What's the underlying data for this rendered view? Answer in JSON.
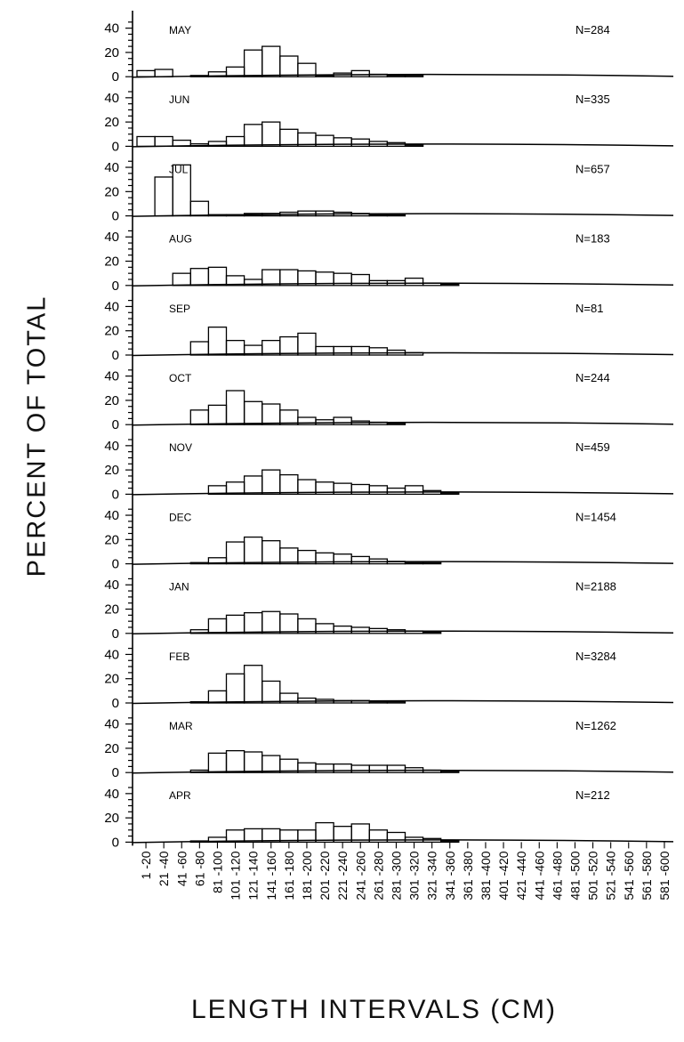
{
  "chart_data": {
    "type": "bar",
    "ylabel": "PERCENT OF TOTAL",
    "xlabel": "LENGTH INTERVALS (CM)",
    "ylim": [
      0,
      50
    ],
    "yticks": [
      "0",
      "20",
      "40"
    ],
    "categories": [
      "1 -20",
      "21 -40",
      "41 -60",
      "61 -80",
      "81 -100",
      "101 -120",
      "121 -140",
      "141 -160",
      "161 -180",
      "181 -200",
      "201 -220",
      "221 -240",
      "241 -260",
      "261 -280",
      "281 -300",
      "301 -320",
      "321 -340",
      "341 -360",
      "361 -380",
      "381 -400",
      "401 -420",
      "421 -440",
      "441 -460",
      "461 -480",
      "481 -500",
      "501 -520",
      "521 -540",
      "541 -560",
      "561 -580",
      "581 -600"
    ],
    "panels": [
      {
        "month": "MAY",
        "n": "N=284",
        "values": [
          5,
          6,
          0,
          1,
          4,
          8,
          22,
          25,
          17,
          11,
          1,
          3,
          5,
          2,
          1,
          1,
          0,
          0,
          0,
          0,
          0,
          0,
          0,
          0,
          0,
          0,
          0,
          0,
          0,
          0
        ]
      },
      {
        "month": "JUN",
        "n": "N=335",
        "values": [
          8,
          8,
          5,
          2,
          4,
          8,
          18,
          20,
          14,
          11,
          9,
          7,
          6,
          4,
          3,
          1,
          0,
          0,
          0,
          0,
          0,
          0,
          0,
          0,
          0,
          0,
          0,
          0,
          0,
          0
        ]
      },
      {
        "month": "JUL",
        "n": "N=657",
        "values": [
          0,
          32,
          42,
          12,
          1,
          1,
          2,
          2,
          3,
          4,
          4,
          3,
          2,
          1,
          1,
          0,
          0,
          0,
          0,
          0,
          0,
          0,
          0,
          0,
          0,
          0,
          0,
          0,
          0,
          0
        ]
      },
      {
        "month": "AUG",
        "n": "N=183",
        "values": [
          0,
          0,
          10,
          14,
          15,
          8,
          5,
          13,
          13,
          12,
          11,
          10,
          9,
          4,
          4,
          6,
          2,
          1,
          0,
          0,
          0,
          0,
          0,
          0,
          0,
          0,
          0,
          0,
          0,
          0
        ]
      },
      {
        "month": "SEP",
        "n": "N=81",
        "values": [
          0,
          0,
          0,
          11,
          23,
          12,
          8,
          12,
          15,
          18,
          7,
          7,
          7,
          6,
          4,
          2,
          0,
          0,
          0,
          0,
          0,
          0,
          0,
          0,
          0,
          0,
          0,
          0,
          0,
          0
        ]
      },
      {
        "month": "OCT",
        "n": "N=244",
        "values": [
          0,
          0,
          0,
          12,
          16,
          28,
          19,
          17,
          12,
          6,
          4,
          6,
          3,
          2,
          1,
          0,
          0,
          0,
          0,
          0,
          0,
          0,
          0,
          0,
          0,
          0,
          0,
          0,
          0,
          0
        ]
      },
      {
        "month": "NOV",
        "n": "N=459",
        "values": [
          0,
          0,
          0,
          0,
          7,
          10,
          15,
          20,
          16,
          12,
          10,
          9,
          8,
          7,
          5,
          7,
          3,
          1,
          0,
          0,
          0,
          0,
          0,
          0,
          0,
          0,
          0,
          0,
          0,
          0
        ]
      },
      {
        "month": "DEC",
        "n": "N=1454",
        "values": [
          0,
          0,
          0,
          1,
          5,
          18,
          22,
          19,
          13,
          11,
          9,
          8,
          6,
          4,
          2,
          1,
          1,
          0,
          0,
          0,
          0,
          0,
          0,
          0,
          0,
          0,
          0,
          0,
          0,
          0
        ]
      },
      {
        "month": "JAN",
        "n": "N=2188",
        "values": [
          0,
          0,
          0,
          3,
          12,
          15,
          17,
          18,
          16,
          12,
          8,
          6,
          5,
          4,
          3,
          2,
          1,
          0,
          0,
          0,
          0,
          0,
          0,
          0,
          0,
          0,
          0,
          0,
          0,
          0
        ]
      },
      {
        "month": "FEB",
        "n": "N=3284",
        "values": [
          0,
          0,
          0,
          1,
          10,
          24,
          31,
          18,
          8,
          4,
          3,
          2,
          2,
          1,
          1,
          0,
          0,
          0,
          0,
          0,
          0,
          0,
          0,
          0,
          0,
          0,
          0,
          0,
          0,
          0
        ]
      },
      {
        "month": "MAR",
        "n": "N=1262",
        "values": [
          0,
          0,
          0,
          2,
          16,
          18,
          17,
          14,
          11,
          8,
          7,
          7,
          6,
          6,
          6,
          4,
          2,
          1,
          0,
          0,
          0,
          0,
          0,
          0,
          0,
          0,
          0,
          0,
          0,
          0
        ]
      },
      {
        "month": "APR",
        "n": "N=212",
        "values": [
          0,
          0,
          0,
          1,
          4,
          10,
          11,
          11,
          10,
          10,
          16,
          13,
          15,
          10,
          8,
          4,
          3,
          1,
          0,
          0,
          0,
          0,
          0,
          0,
          0,
          0,
          0,
          0,
          0,
          0
        ]
      }
    ]
  }
}
